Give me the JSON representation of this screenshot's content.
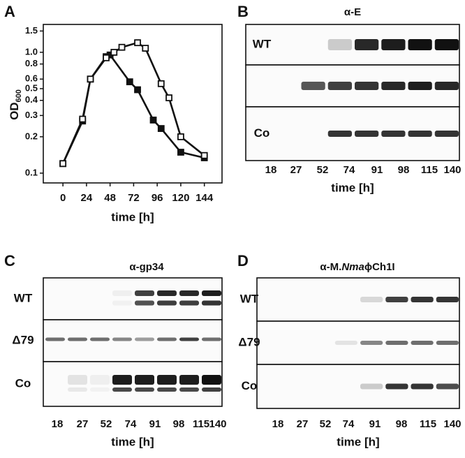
{
  "chart_data": {
    "type": "line",
    "panel": "A",
    "y_label": "OD",
    "y_label_subscript": "600",
    "x_label": "time [h]",
    "log_y": true,
    "xlim": [
      -20,
      162
    ],
    "xticks": [
      0,
      24,
      48,
      72,
      96,
      120,
      144
    ],
    "ylim": [
      0.083,
      1.7
    ],
    "yticks": [
      0.1,
      0.2,
      0.3,
      0.4,
      0.5,
      0.6,
      0.8,
      {
        "value": 1,
        "label": "1.0"
      },
      1.5
    ],
    "series": [
      {
        "marker": "filled",
        "color": "#111111",
        "x": [
          0,
          20,
          28,
          44,
          48,
          68,
          76,
          92,
          100,
          120,
          144
        ],
        "values": [
          0.12,
          0.27,
          0.6,
          0.92,
          0.95,
          0.57,
          0.49,
          0.275,
          0.234,
          0.149,
          0.134
        ]
      },
      {
        "marker": "open",
        "color": "#111111",
        "x": [
          0,
          20,
          28,
          44,
          52,
          60,
          76,
          84,
          100,
          108,
          120,
          144
        ],
        "values": [
          0.12,
          0.28,
          0.6,
          0.9,
          1.0,
          1.1,
          1.2,
          1.08,
          0.55,
          0.42,
          0.2,
          0.14
        ]
      }
    ]
  },
  "blots": [
    {
      "panel": "B",
      "title": "α-E",
      "rows": [
        "WT",
        null,
        "Co"
      ],
      "lanes": [
        "18",
        "27",
        "52",
        "74",
        "91",
        "98",
        "115",
        "140"
      ],
      "x_label": "time [h]"
    },
    {
      "panel": "C",
      "title": "α-gp34",
      "rows": [
        "WT",
        "Δ79",
        "Co"
      ],
      "lanes": [
        "18",
        "27",
        "52",
        "74",
        "91",
        "98",
        "115",
        "140"
      ],
      "x_label": "time [h]"
    },
    {
      "panel": "D",
      "title_parts": [
        "α-M.",
        "Nma",
        "ϕCh1I"
      ],
      "rows": [
        "WT",
        "Δ79",
        "Co"
      ],
      "lanes": [
        "18",
        "27",
        "52",
        "74",
        "91",
        "98",
        "115",
        "140"
      ],
      "x_label": "time [h]"
    }
  ]
}
